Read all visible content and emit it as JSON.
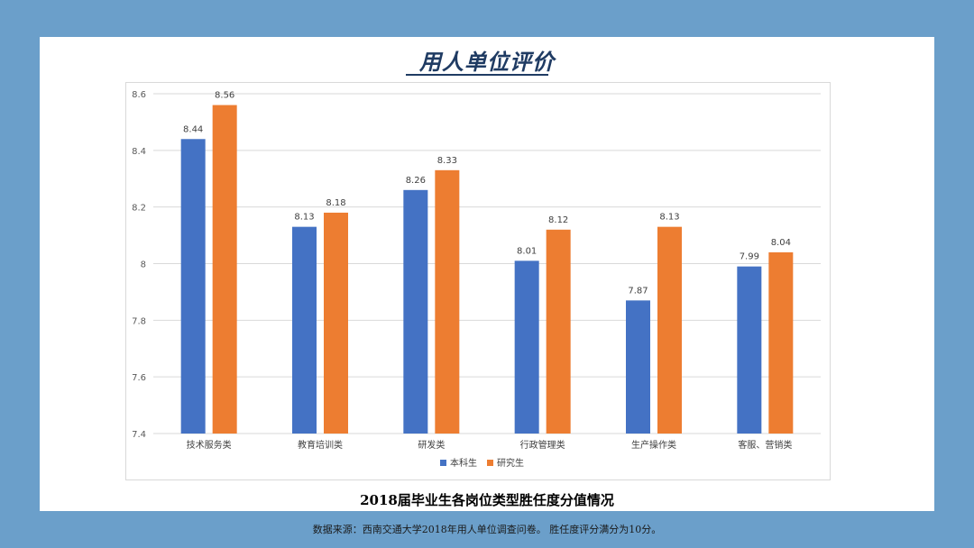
{
  "slide": {
    "title": "用人单位评价",
    "footnote": "数据来源：西南交通大学2018年用人单位调查问卷。 胜任度评分满分为10分。"
  },
  "chart_data": {
    "type": "bar",
    "title": "2018届毕业生各岗位类型胜任度分值情况",
    "xlabel": "",
    "ylabel": "",
    "ylim": [
      7.4,
      8.6
    ],
    "yticks": [
      7.4,
      7.6,
      7.8,
      8,
      8.2,
      8.4,
      8.6
    ],
    "grid": true,
    "legend_position": "bottom",
    "categories": [
      "技术服务类",
      "教育培训类",
      "研发类",
      "行政管理类",
      "生产操作类",
      "客服、营销类"
    ],
    "series": [
      {
        "name": "本科生",
        "color": "#4472c4",
        "values": [
          8.44,
          8.13,
          8.26,
          8.01,
          7.87,
          7.99
        ]
      },
      {
        "name": "研究生",
        "color": "#ed7d31",
        "values": [
          8.56,
          8.18,
          8.33,
          8.12,
          8.13,
          8.04
        ]
      }
    ]
  }
}
